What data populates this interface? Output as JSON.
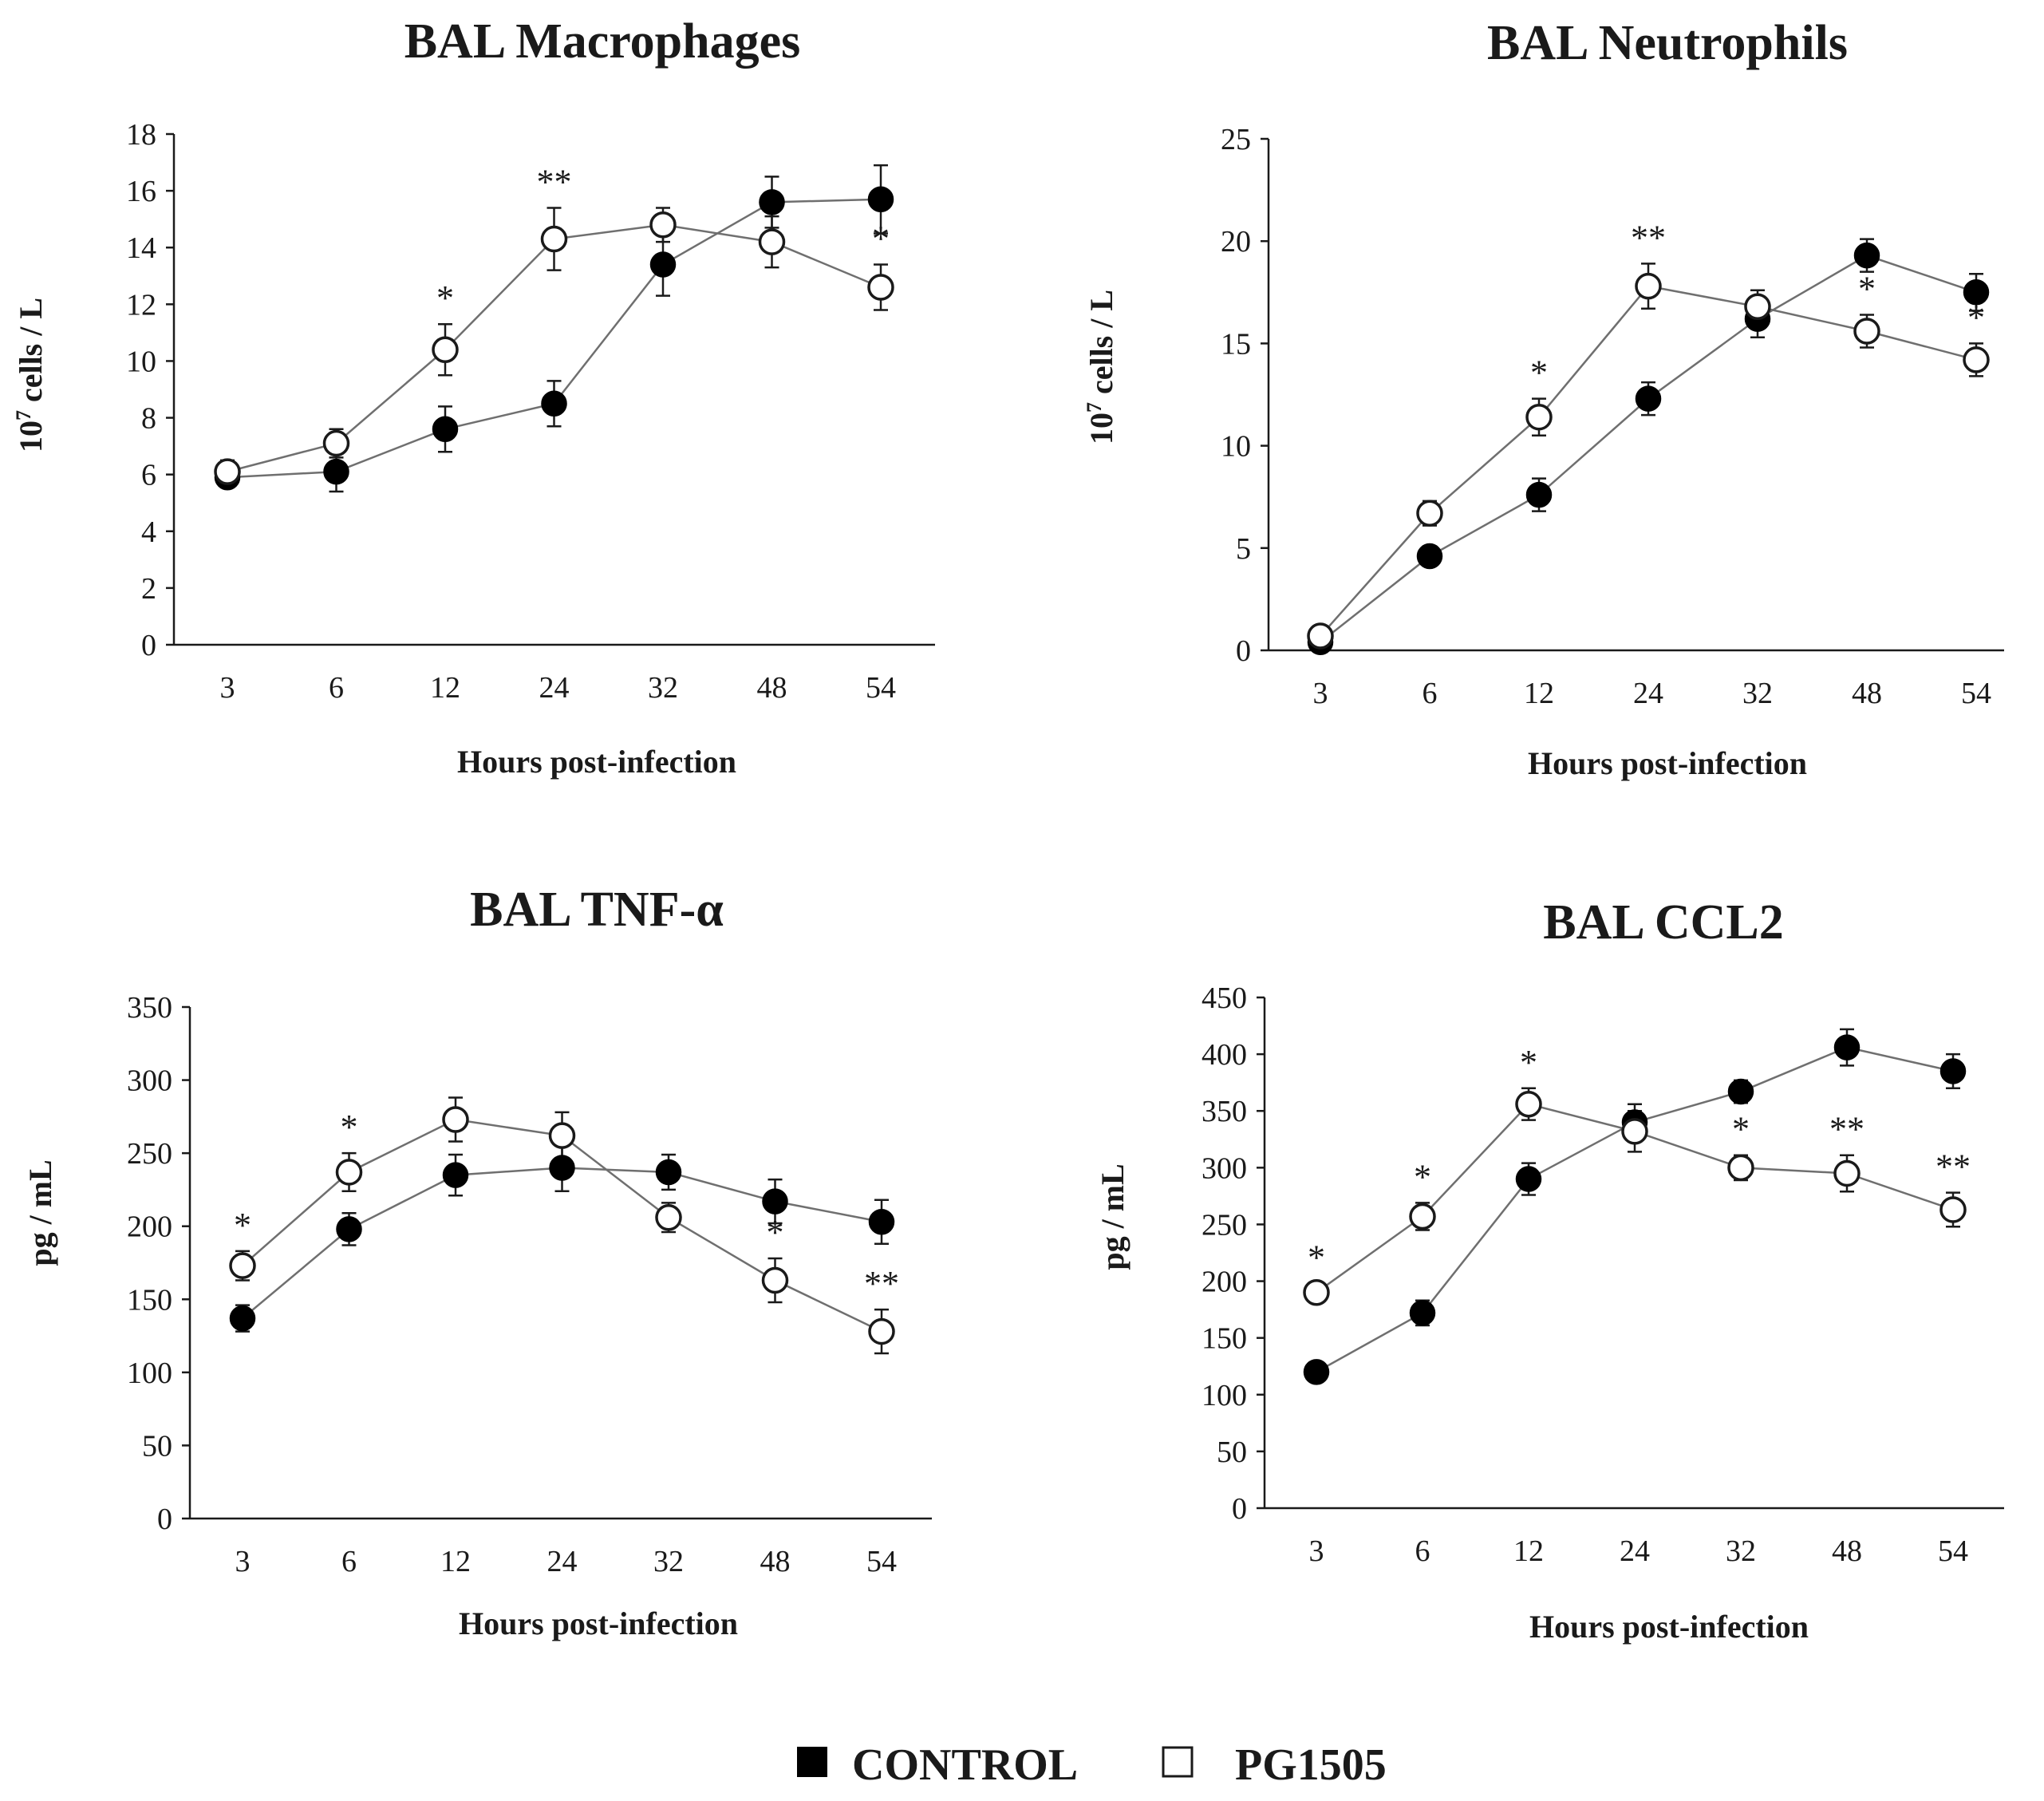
{
  "legend": {
    "items": [
      {
        "label": "CONTROL",
        "marker": "filled-circle",
        "color": "#000000"
      },
      {
        "label": "PG1505",
        "marker": "open-circle",
        "color": "#ffffff"
      }
    ]
  },
  "chart_data": [
    {
      "type": "line",
      "title": "BAL Macrophages",
      "xlabel": "Hours post-infection",
      "ylabel_base": "10",
      "ylabel_sup": "7",
      "ylabel_rest": " cells / L",
      "categories": [
        "3",
        "6",
        "12",
        "24",
        "32",
        "48",
        "54"
      ],
      "ylim": [
        0,
        18
      ],
      "yticks": [
        0,
        2,
        4,
        6,
        8,
        10,
        12,
        14,
        16,
        18
      ],
      "grid": false,
      "series": [
        {
          "name": "CONTROL",
          "values": [
            5.9,
            6.1,
            7.6,
            8.5,
            13.4,
            15.6,
            15.7
          ],
          "errors": [
            0.3,
            0.7,
            0.8,
            0.8,
            1.1,
            0.9,
            1.2
          ]
        },
        {
          "name": "PG1505",
          "values": [
            6.1,
            7.1,
            10.4,
            14.3,
            14.8,
            14.2,
            12.6
          ],
          "errors": [
            0.4,
            0.5,
            0.9,
            1.1,
            0.6,
            0.9,
            0.8
          ]
        }
      ],
      "annotations": [
        "",
        "",
        "*",
        "**",
        "",
        "",
        "*"
      ]
    },
    {
      "type": "line",
      "title": "BAL Neutrophils",
      "xlabel": "Hours post-infection",
      "ylabel_base": "10",
      "ylabel_sup": "7",
      "ylabel_rest": " cells / L",
      "categories": [
        "3",
        "6",
        "12",
        "24",
        "32",
        "48",
        "54"
      ],
      "ylim": [
        0,
        25
      ],
      "yticks": [
        0,
        5,
        10,
        15,
        20,
        25
      ],
      "grid": false,
      "series": [
        {
          "name": "CONTROL",
          "values": [
            0.4,
            4.6,
            7.6,
            12.3,
            16.2,
            19.3,
            17.5
          ],
          "errors": [
            0.3,
            0.4,
            0.8,
            0.8,
            0.9,
            0.8,
            0.9
          ]
        },
        {
          "name": "PG1505",
          "values": [
            0.7,
            6.7,
            11.4,
            17.8,
            16.8,
            15.6,
            14.2
          ],
          "errors": [
            0.3,
            0.6,
            0.9,
            1.1,
            0.8,
            0.8,
            0.8
          ]
        }
      ],
      "annotations": [
        "",
        "",
        "*",
        "**",
        "",
        "*",
        "*"
      ]
    },
    {
      "type": "line",
      "title": "BAL TNF-α",
      "xlabel": "Hours post-infection",
      "ylabel_base": "pg / mL",
      "ylabel_sup": "",
      "ylabel_rest": "",
      "categories": [
        "3",
        "6",
        "12",
        "24",
        "32",
        "48",
        "54"
      ],
      "ylim": [
        0,
        350
      ],
      "yticks": [
        0,
        50,
        100,
        150,
        200,
        250,
        300,
        350
      ],
      "grid": false,
      "series": [
        {
          "name": "CONTROL",
          "values": [
            137,
            198,
            235,
            240,
            237,
            217,
            203
          ],
          "errors": [
            9,
            11,
            14,
            16,
            12,
            15,
            15
          ]
        },
        {
          "name": "PG1505",
          "values": [
            173,
            237,
            273,
            262,
            206,
            163,
            128
          ],
          "errors": [
            10,
            13,
            15,
            16,
            10,
            15,
            15
          ]
        }
      ],
      "annotations": [
        "*",
        "*",
        "",
        "",
        "",
        "*",
        "**"
      ]
    },
    {
      "type": "line",
      "title": "BAL CCL2",
      "xlabel": "Hours post-infection",
      "ylabel_base": "pg / mL",
      "ylabel_sup": "",
      "ylabel_rest": "",
      "categories": [
        "3",
        "6",
        "12",
        "24",
        "32",
        "48",
        "54"
      ],
      "ylim": [
        0,
        450
      ],
      "yticks": [
        0,
        50,
        100,
        150,
        200,
        250,
        300,
        350,
        400,
        450
      ],
      "grid": false,
      "series": [
        {
          "name": "CONTROL",
          "values": [
            120,
            172,
            290,
            340,
            367,
            406,
            385
          ],
          "errors": [
            7,
            11,
            14,
            16,
            10,
            16,
            15
          ]
        },
        {
          "name": "PG1505",
          "values": [
            190,
            257,
            356,
            332,
            300,
            295,
            263
          ],
          "errors": [
            8,
            12,
            14,
            18,
            11,
            16,
            15
          ]
        }
      ],
      "annotations": [
        "*",
        "*",
        "*",
        "",
        "*",
        "**",
        "**"
      ]
    }
  ]
}
